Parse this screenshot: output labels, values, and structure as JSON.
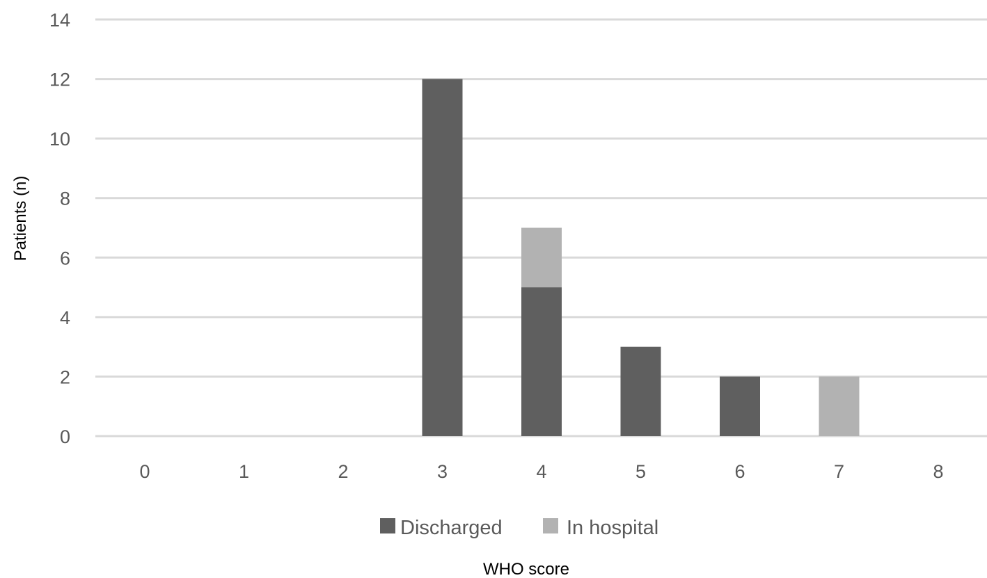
{
  "chart_data": {
    "type": "bar",
    "stacked": true,
    "categories": [
      "0",
      "1",
      "2",
      "3",
      "4",
      "5",
      "6",
      "7",
      "8"
    ],
    "series": [
      {
        "name": "Discharged",
        "color": "#5f5f5f",
        "values": [
          0,
          0,
          0,
          12,
          5,
          3,
          2,
          0,
          0
        ]
      },
      {
        "name": "In hospital",
        "color": "#b2b2b2",
        "values": [
          0,
          0,
          0,
          0,
          2,
          0,
          0,
          2,
          0
        ]
      }
    ],
    "title": "",
    "xlabel": "WHO score",
    "ylabel": "Patients (n)",
    "ylim": [
      0,
      14
    ],
    "yticks": [
      0,
      2,
      4,
      6,
      8,
      10,
      12,
      14
    ],
    "grid": true,
    "legend_position": "bottom"
  }
}
